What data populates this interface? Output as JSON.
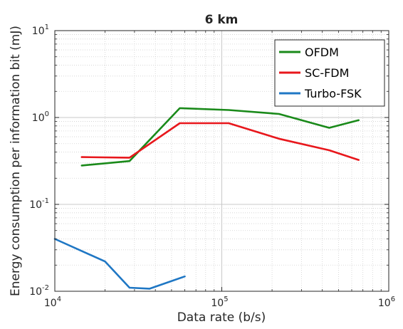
{
  "chart_data": {
    "type": "line",
    "title": "6 km",
    "xlabel": "Data rate (b/s)",
    "ylabel": "Energy consumption per information bit (mJ)",
    "xscale": "log",
    "yscale": "log",
    "xlim": [
      10000,
      1000000
    ],
    "ylim": [
      0.01,
      10
    ],
    "grid": true,
    "minor_grid": true,
    "legend_position": "top-right",
    "x_ticks": [
      {
        "base": "10",
        "exp": "4",
        "value": 10000
      },
      {
        "base": "10",
        "exp": "5",
        "value": 100000
      },
      {
        "base": "10",
        "exp": "6",
        "value": 1000000
      }
    ],
    "y_ticks": [
      {
        "base": "10",
        "exp": "-2",
        "value": 0.01
      },
      {
        "base": "10",
        "exp": "-1",
        "value": 0.1
      },
      {
        "base": "10",
        "exp": "0",
        "value": 1
      },
      {
        "base": "10",
        "exp": "1",
        "value": 10
      }
    ],
    "series": [
      {
        "name": "OFDM",
        "color": "#1a8a1a",
        "x": [
          14500,
          28000,
          56000,
          110000,
          220000,
          440000,
          660000
        ],
        "y": [
          0.28,
          0.315,
          1.28,
          1.22,
          1.1,
          0.76,
          0.93
        ]
      },
      {
        "name": "SC-FDM",
        "color": "#e8171c",
        "x": [
          14500,
          28000,
          56000,
          110000,
          220000,
          440000,
          660000
        ],
        "y": [
          0.35,
          0.345,
          0.86,
          0.86,
          0.57,
          0.42,
          0.325
        ]
      },
      {
        "name": "Turbo-FSK",
        "color": "#1f77c4",
        "x": [
          10000,
          20000,
          28000,
          37000,
          60000
        ],
        "y": [
          0.04,
          0.022,
          0.011,
          0.0107,
          0.0148
        ]
      }
    ]
  }
}
